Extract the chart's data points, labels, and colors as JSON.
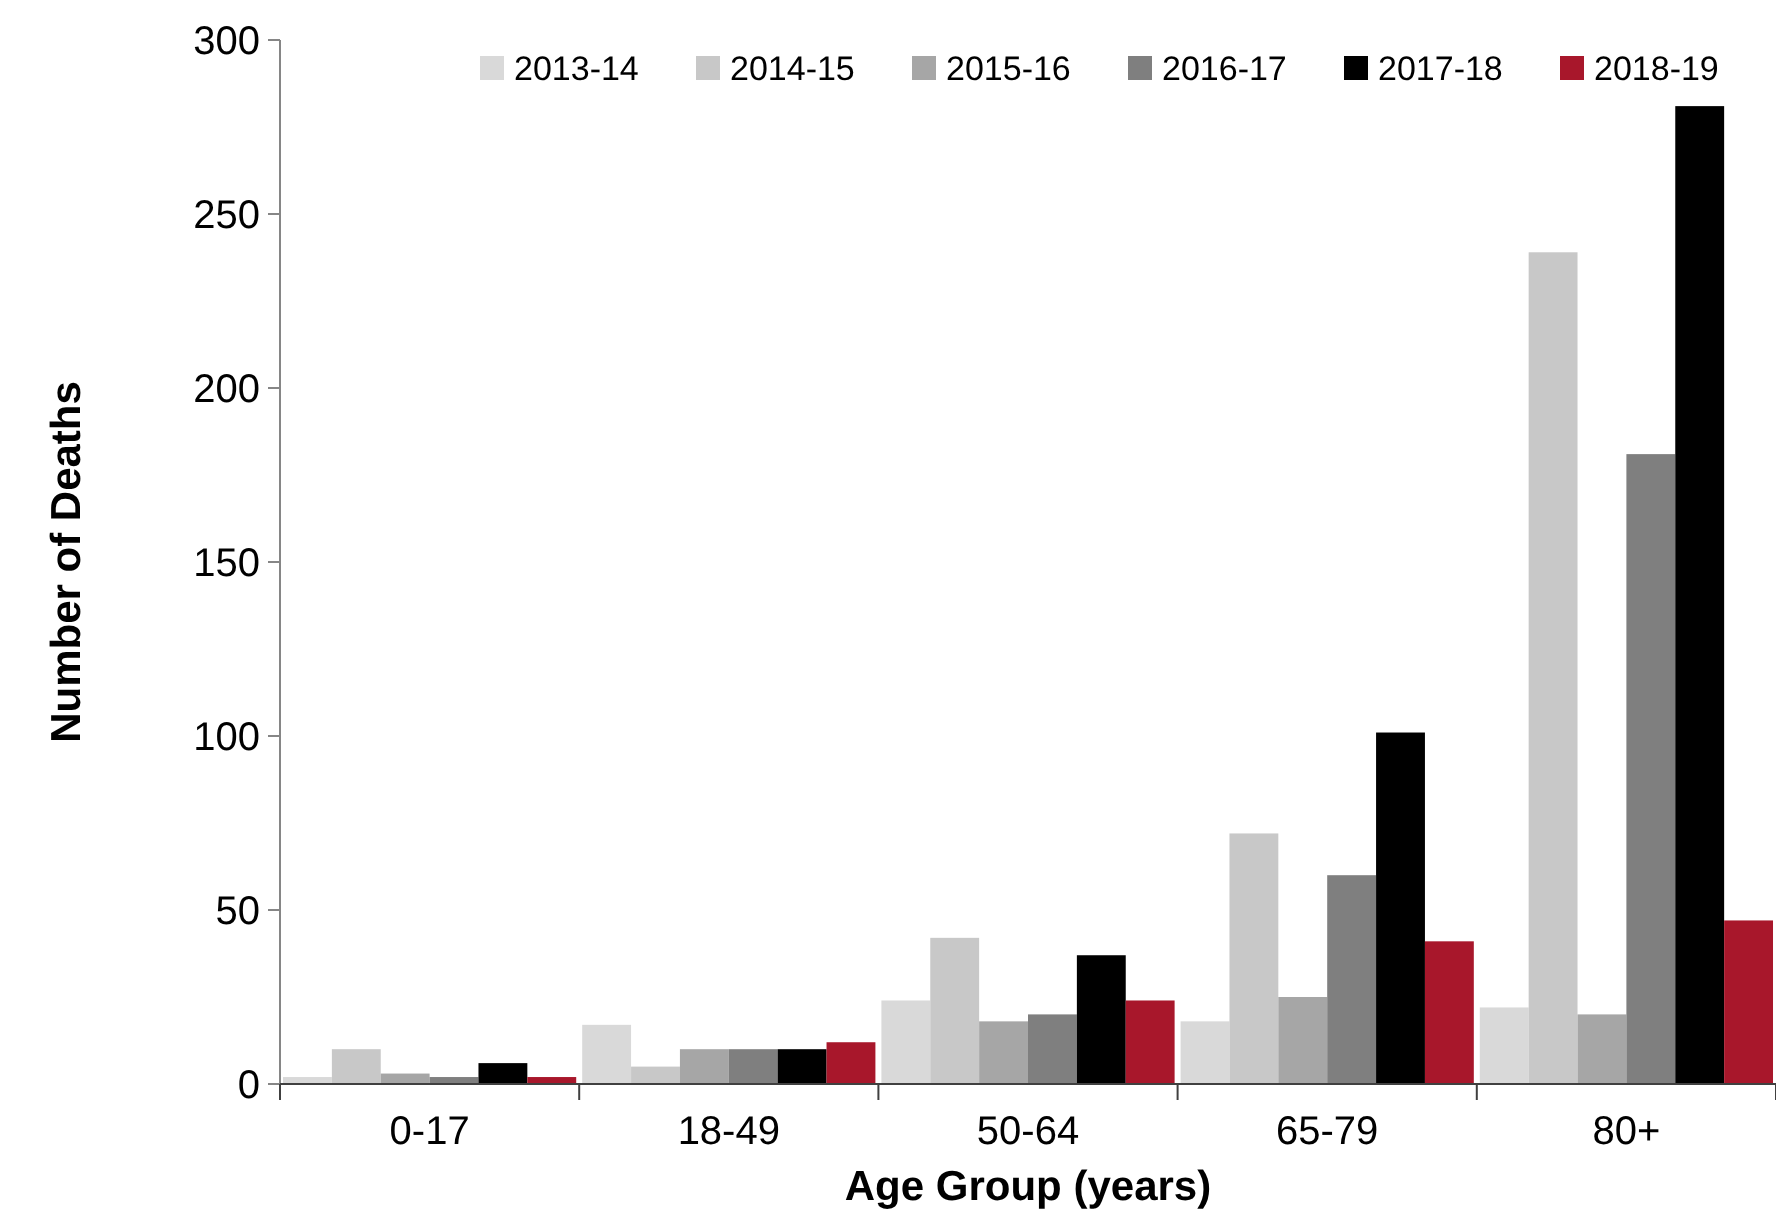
{
  "chart_data": {
    "type": "bar",
    "xlabel": "Age Group (years)",
    "ylabel": "Number of Deaths",
    "categories": [
      "0-17",
      "18-49",
      "50-64",
      "65-79",
      "80+"
    ],
    "series": [
      {
        "name": "2013-14",
        "color": "#d9d9d9",
        "values": [
          2,
          17,
          24,
          18,
          22
        ]
      },
      {
        "name": "2014-15",
        "color": "#c8c8c8",
        "values": [
          10,
          5,
          42,
          72,
          239
        ]
      },
      {
        "name": "2015-16",
        "color": "#a6a6a6",
        "values": [
          3,
          10,
          18,
          25,
          20
        ]
      },
      {
        "name": "2016-17",
        "color": "#7f7f7f",
        "values": [
          2,
          10,
          20,
          60,
          181
        ]
      },
      {
        "name": "2017-18",
        "color": "#000000",
        "values": [
          6,
          10,
          37,
          101,
          281
        ]
      },
      {
        "name": "2018-19",
        "color": "#a8172b",
        "values": [
          2,
          12,
          24,
          41,
          47
        ]
      }
    ],
    "ylim": [
      0,
      300
    ],
    "yticks": [
      0,
      50,
      100,
      150,
      200,
      250,
      300
    ],
    "grid": false,
    "legend": "top right"
  }
}
